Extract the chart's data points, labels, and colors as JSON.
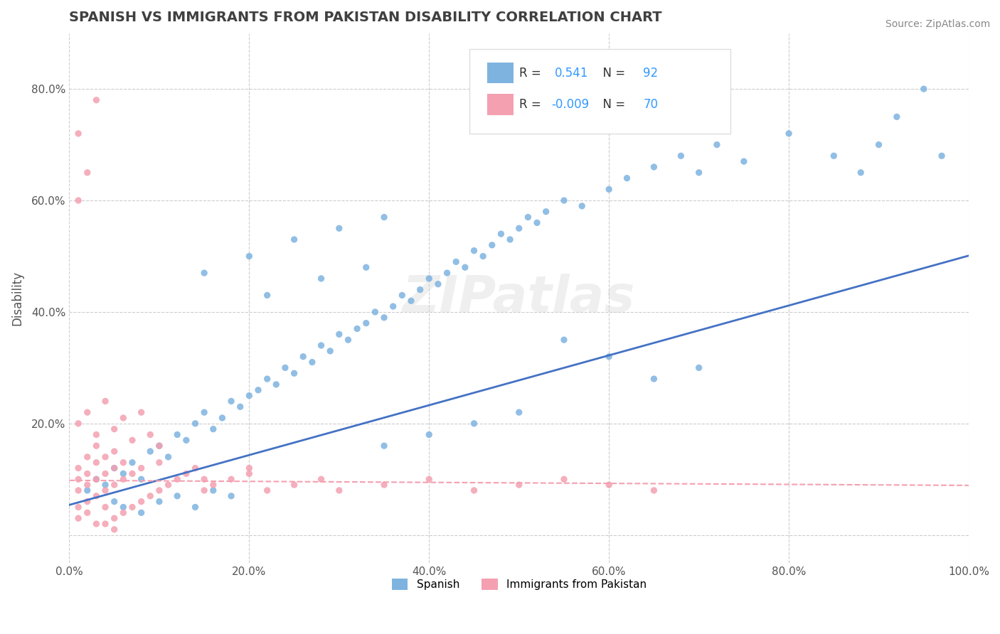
{
  "title": "SPANISH VS IMMIGRANTS FROM PAKISTAN DISABILITY CORRELATION CHART",
  "source": "Source: ZipAtlas.com",
  "xlabel": "",
  "ylabel": "Disability",
  "xlim": [
    0.0,
    1.0
  ],
  "ylim": [
    -0.05,
    0.9
  ],
  "x_tick_labels": [
    "0.0%",
    "20.0%",
    "40.0%",
    "60.0%",
    "80.0%",
    "100.0%"
  ],
  "x_tick_vals": [
    0.0,
    0.2,
    0.4,
    0.6,
    0.8,
    1.0
  ],
  "y_tick_labels": [
    "",
    "20.0%",
    "40.0%",
    "60.0%",
    "80.0%"
  ],
  "y_tick_vals": [
    0.0,
    0.2,
    0.4,
    0.6,
    0.8
  ],
  "R_spanish": 0.541,
  "N_spanish": 92,
  "R_pakistan": -0.009,
  "N_pakistan": 70,
  "spanish_color": "#7EB3E0",
  "pakistan_color": "#F4A0B0",
  "spanish_line_color": "#4472C4",
  "pakistan_line_color": "#F4A0B0",
  "watermark": "ZIPatlas",
  "legend_box_color": "#F5F5F5",
  "grid_color": "#CCCCCC",
  "title_color": "#404040",
  "label_color": "#3399FF",
  "spanish_scatter": [
    [
      0.02,
      0.08
    ],
    [
      0.03,
      0.1
    ],
    [
      0.04,
      0.09
    ],
    [
      0.05,
      0.12
    ],
    [
      0.06,
      0.11
    ],
    [
      0.07,
      0.13
    ],
    [
      0.08,
      0.1
    ],
    [
      0.09,
      0.15
    ],
    [
      0.1,
      0.16
    ],
    [
      0.11,
      0.14
    ],
    [
      0.12,
      0.18
    ],
    [
      0.13,
      0.17
    ],
    [
      0.14,
      0.2
    ],
    [
      0.15,
      0.22
    ],
    [
      0.16,
      0.19
    ],
    [
      0.17,
      0.21
    ],
    [
      0.18,
      0.24
    ],
    [
      0.19,
      0.23
    ],
    [
      0.2,
      0.25
    ],
    [
      0.21,
      0.26
    ],
    [
      0.22,
      0.28
    ],
    [
      0.23,
      0.27
    ],
    [
      0.24,
      0.3
    ],
    [
      0.25,
      0.29
    ],
    [
      0.26,
      0.32
    ],
    [
      0.27,
      0.31
    ],
    [
      0.28,
      0.34
    ],
    [
      0.29,
      0.33
    ],
    [
      0.3,
      0.36
    ],
    [
      0.31,
      0.35
    ],
    [
      0.32,
      0.37
    ],
    [
      0.33,
      0.38
    ],
    [
      0.34,
      0.4
    ],
    [
      0.35,
      0.39
    ],
    [
      0.36,
      0.41
    ],
    [
      0.37,
      0.43
    ],
    [
      0.38,
      0.42
    ],
    [
      0.39,
      0.44
    ],
    [
      0.4,
      0.46
    ],
    [
      0.41,
      0.45
    ],
    [
      0.42,
      0.47
    ],
    [
      0.43,
      0.49
    ],
    [
      0.44,
      0.48
    ],
    [
      0.45,
      0.51
    ],
    [
      0.46,
      0.5
    ],
    [
      0.47,
      0.52
    ],
    [
      0.48,
      0.54
    ],
    [
      0.49,
      0.53
    ],
    [
      0.5,
      0.55
    ],
    [
      0.51,
      0.57
    ],
    [
      0.52,
      0.56
    ],
    [
      0.53,
      0.58
    ],
    [
      0.55,
      0.6
    ],
    [
      0.57,
      0.59
    ],
    [
      0.6,
      0.62
    ],
    [
      0.62,
      0.64
    ],
    [
      0.65,
      0.66
    ],
    [
      0.68,
      0.68
    ],
    [
      0.7,
      0.65
    ],
    [
      0.72,
      0.7
    ],
    [
      0.75,
      0.67
    ],
    [
      0.8,
      0.72
    ],
    [
      0.85,
      0.68
    ],
    [
      0.88,
      0.65
    ],
    [
      0.9,
      0.7
    ],
    [
      0.92,
      0.75
    ],
    [
      0.95,
      0.8
    ],
    [
      0.97,
      0.68
    ],
    [
      0.15,
      0.47
    ],
    [
      0.2,
      0.5
    ],
    [
      0.25,
      0.53
    ],
    [
      0.3,
      0.55
    ],
    [
      0.35,
      0.57
    ],
    [
      0.22,
      0.43
    ],
    [
      0.28,
      0.46
    ],
    [
      0.33,
      0.48
    ],
    [
      0.1,
      0.06
    ],
    [
      0.12,
      0.07
    ],
    [
      0.14,
      0.05
    ],
    [
      0.16,
      0.08
    ],
    [
      0.18,
      0.07
    ],
    [
      0.08,
      0.04
    ],
    [
      0.06,
      0.05
    ],
    [
      0.05,
      0.06
    ],
    [
      0.55,
      0.35
    ],
    [
      0.6,
      0.32
    ],
    [
      0.65,
      0.28
    ],
    [
      0.7,
      0.3
    ],
    [
      0.45,
      0.2
    ],
    [
      0.5,
      0.22
    ],
    [
      0.4,
      0.18
    ],
    [
      0.35,
      0.16
    ]
  ],
  "pakistan_scatter": [
    [
      0.01,
      0.05
    ],
    [
      0.01,
      0.08
    ],
    [
      0.01,
      0.1
    ],
    [
      0.01,
      0.12
    ],
    [
      0.02,
      0.06
    ],
    [
      0.02,
      0.09
    ],
    [
      0.02,
      0.11
    ],
    [
      0.02,
      0.14
    ],
    [
      0.03,
      0.07
    ],
    [
      0.03,
      0.1
    ],
    [
      0.03,
      0.13
    ],
    [
      0.03,
      0.16
    ],
    [
      0.04,
      0.08
    ],
    [
      0.04,
      0.11
    ],
    [
      0.04,
      0.14
    ],
    [
      0.04,
      0.02
    ],
    [
      0.05,
      0.09
    ],
    [
      0.05,
      0.12
    ],
    [
      0.05,
      0.15
    ],
    [
      0.05,
      0.03
    ],
    [
      0.06,
      0.1
    ],
    [
      0.06,
      0.13
    ],
    [
      0.06,
      0.04
    ],
    [
      0.07,
      0.11
    ],
    [
      0.07,
      0.05
    ],
    [
      0.08,
      0.12
    ],
    [
      0.08,
      0.06
    ],
    [
      0.09,
      0.07
    ],
    [
      0.1,
      0.08
    ],
    [
      0.1,
      0.13
    ],
    [
      0.11,
      0.09
    ],
    [
      0.12,
      0.1
    ],
    [
      0.13,
      0.11
    ],
    [
      0.14,
      0.12
    ],
    [
      0.15,
      0.08
    ],
    [
      0.16,
      0.09
    ],
    [
      0.18,
      0.1
    ],
    [
      0.2,
      0.11
    ],
    [
      0.22,
      0.08
    ],
    [
      0.25,
      0.09
    ],
    [
      0.28,
      0.1
    ],
    [
      0.3,
      0.08
    ],
    [
      0.35,
      0.09
    ],
    [
      0.4,
      0.1
    ],
    [
      0.45,
      0.08
    ],
    [
      0.5,
      0.09
    ],
    [
      0.55,
      0.1
    ],
    [
      0.6,
      0.09
    ],
    [
      0.65,
      0.08
    ],
    [
      0.01,
      0.2
    ],
    [
      0.02,
      0.22
    ],
    [
      0.03,
      0.18
    ],
    [
      0.04,
      0.24
    ],
    [
      0.05,
      0.19
    ],
    [
      0.06,
      0.21
    ],
    [
      0.07,
      0.17
    ],
    [
      0.08,
      0.22
    ],
    [
      0.09,
      0.18
    ],
    [
      0.1,
      0.16
    ],
    [
      0.01,
      0.03
    ],
    [
      0.02,
      0.04
    ],
    [
      0.03,
      0.02
    ],
    [
      0.04,
      0.05
    ],
    [
      0.05,
      0.01
    ],
    [
      0.01,
      0.72
    ],
    [
      0.02,
      0.65
    ],
    [
      0.03,
      0.78
    ],
    [
      0.01,
      0.6
    ],
    [
      0.15,
      0.1
    ],
    [
      0.2,
      0.12
    ]
  ]
}
